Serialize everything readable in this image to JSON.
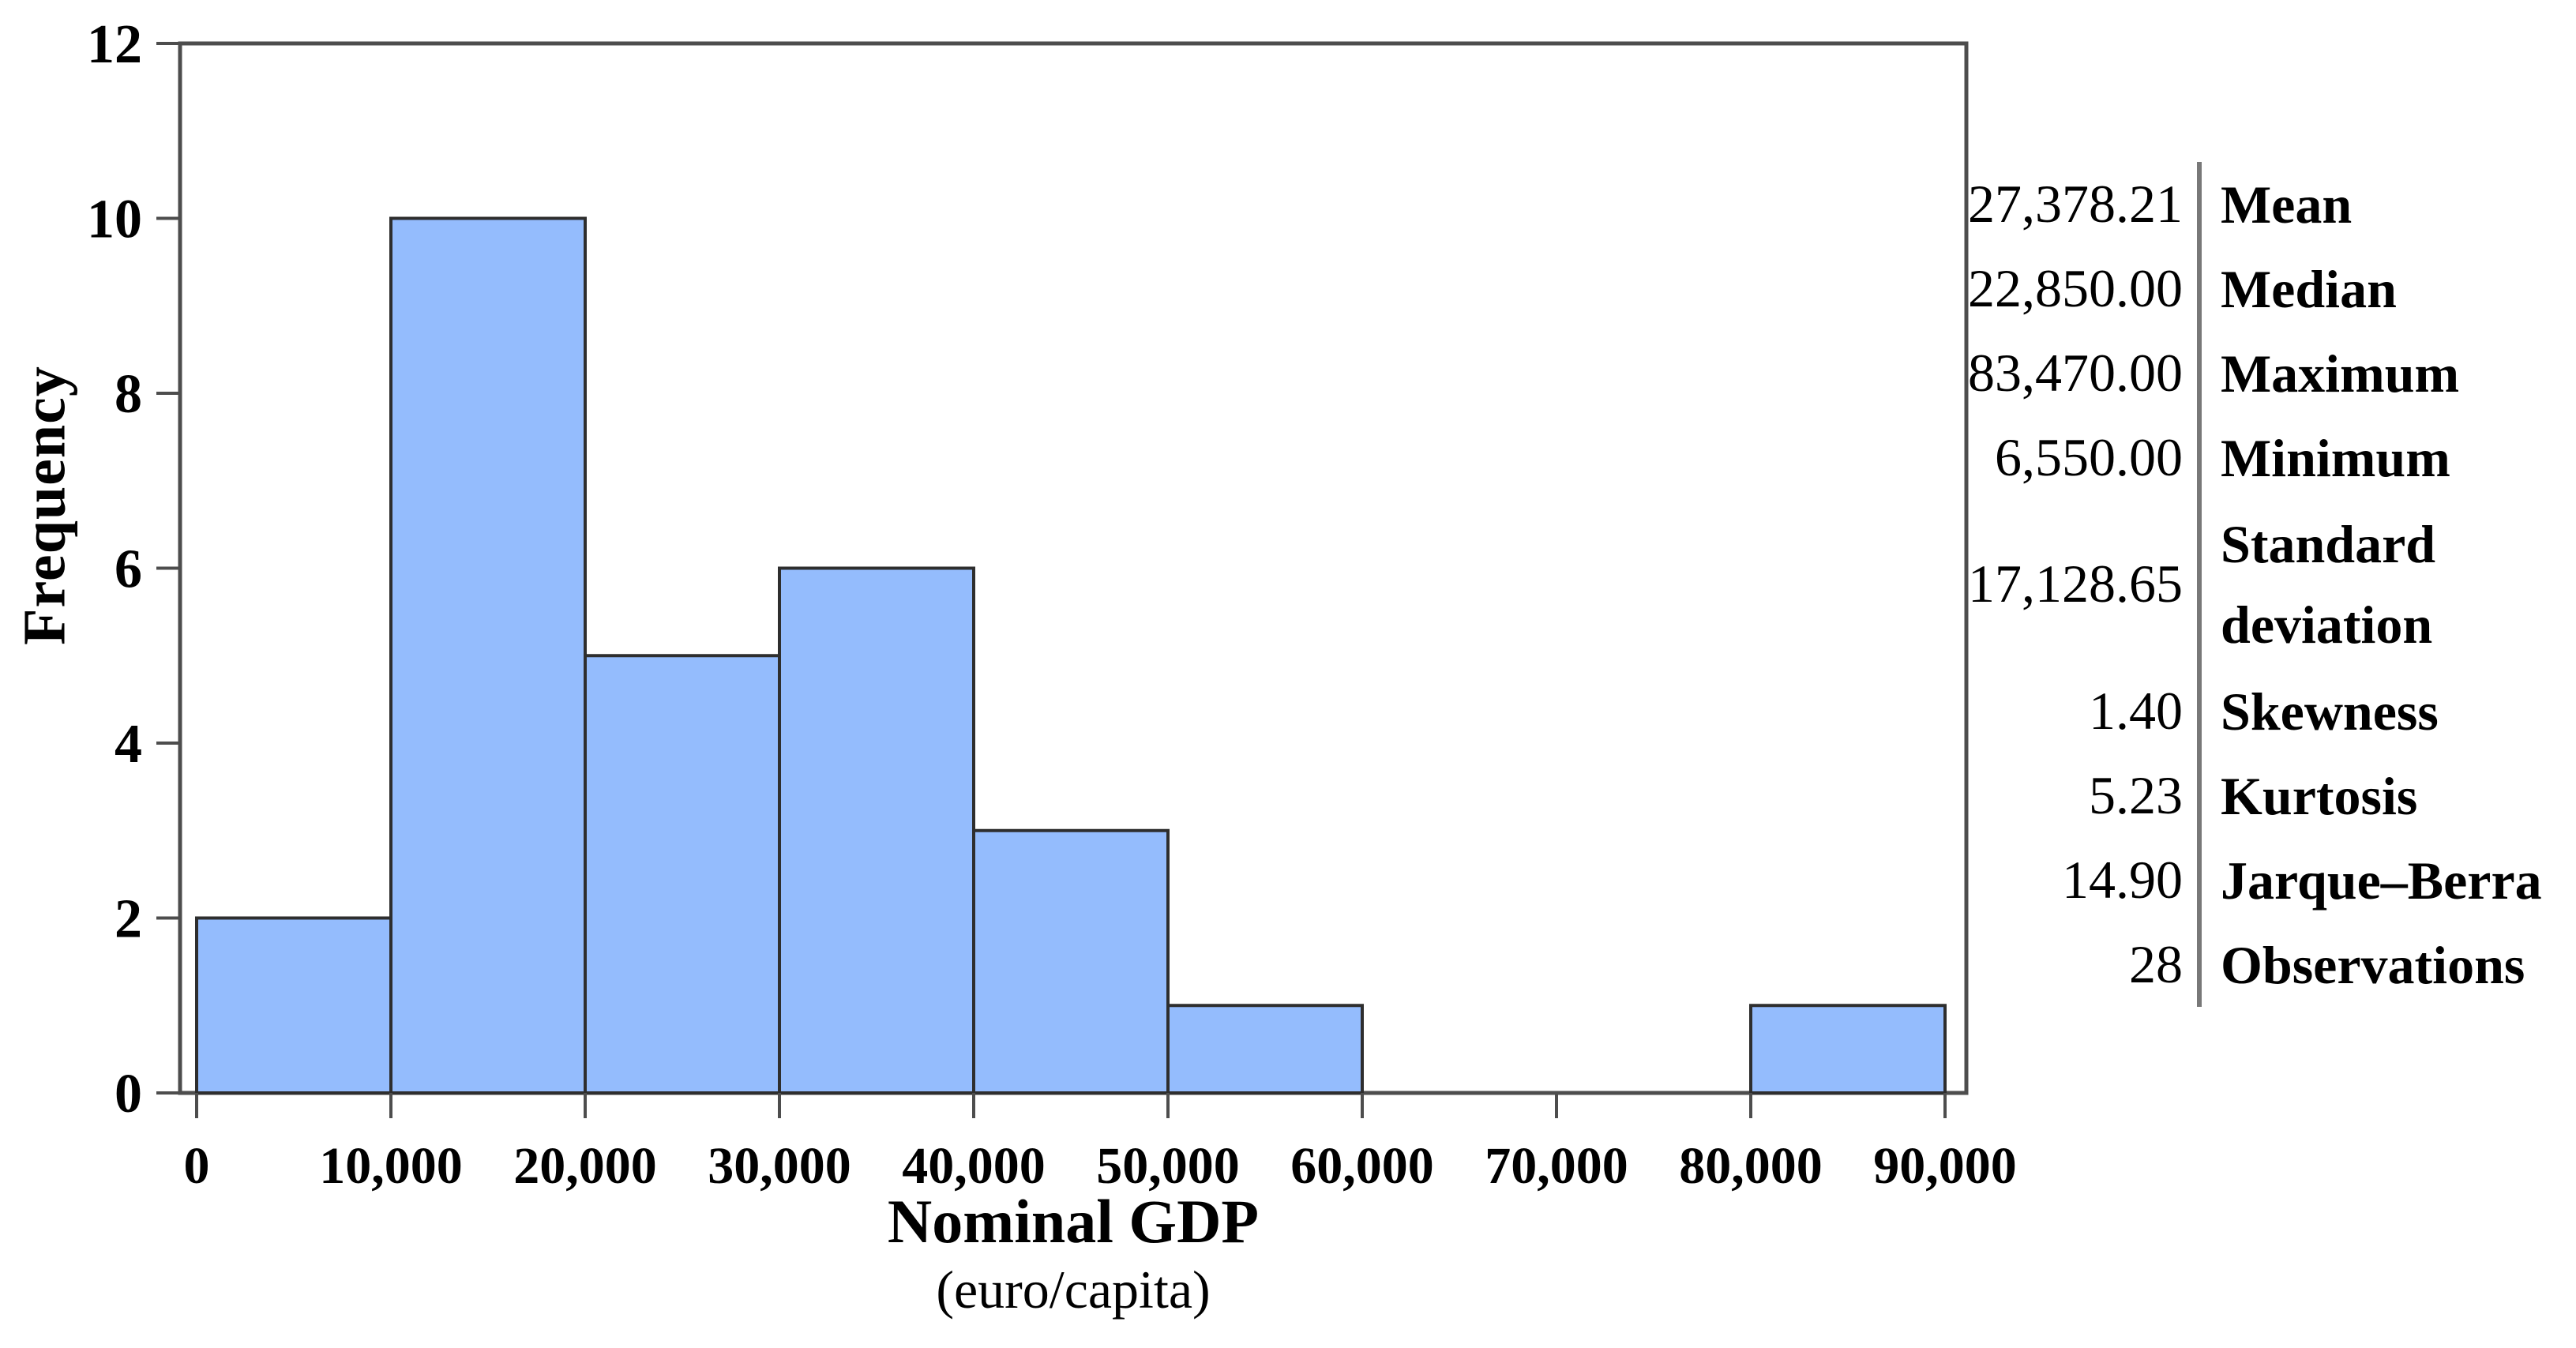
{
  "chart_data": {
    "type": "bar",
    "subtype": "histogram",
    "title": "",
    "xlabel": "Nominal GDP",
    "xlabel_unit": "(euro/capita)",
    "ylabel": "Frequency",
    "xlim": [
      0,
      91000
    ],
    "ylim": [
      0,
      12
    ],
    "grid": false,
    "legend": "none",
    "bin_width": 10000,
    "x_tick_values": [
      0,
      10000,
      20000,
      30000,
      40000,
      50000,
      60000,
      70000,
      80000,
      90000
    ],
    "x_tick_labels": [
      "0",
      "10,000",
      "20,000",
      "30,000",
      "40,000",
      "50,000",
      "60,000",
      "70,000",
      "80,000",
      "90,000"
    ],
    "y_tick_values": [
      0,
      2,
      4,
      6,
      8,
      10,
      12
    ],
    "bars": [
      {
        "range": [
          0,
          10000
        ],
        "frequency": 2
      },
      {
        "range": [
          10000,
          20000
        ],
        "frequency": 10
      },
      {
        "range": [
          20000,
          30000
        ],
        "frequency": 5
      },
      {
        "range": [
          30000,
          40000
        ],
        "frequency": 6
      },
      {
        "range": [
          40000,
          50000
        ],
        "frequency": 3
      },
      {
        "range": [
          50000,
          60000
        ],
        "frequency": 1
      },
      {
        "range": [
          60000,
          70000
        ],
        "frequency": 0
      },
      {
        "range": [
          70000,
          80000
        ],
        "frequency": 0
      },
      {
        "range": [
          80000,
          90000
        ],
        "frequency": 1
      }
    ],
    "colors": {
      "bar_fill": "#94bcfd",
      "bar_stroke": "#2e2e2e",
      "axis": "#4d4d4d",
      "text": "#000000"
    }
  },
  "stats_panel": {
    "divider_color": "#787878",
    "rows": [
      {
        "value": "27,378.21",
        "label": "Mean"
      },
      {
        "value": "22,850.00",
        "label": "Median"
      },
      {
        "value": "83,470.00",
        "label": "Maximum"
      },
      {
        "value": "6,550.00",
        "label": "Minimum"
      },
      {
        "value": "17,128.65",
        "label": "Standard deviation"
      },
      {
        "value": "1.40",
        "label": "Skewness"
      },
      {
        "value": "5.23",
        "label": "Kurtosis"
      },
      {
        "value": "14.90",
        "label": "Jarque–Berra"
      },
      {
        "value": "28",
        "label": "Observations"
      }
    ]
  }
}
